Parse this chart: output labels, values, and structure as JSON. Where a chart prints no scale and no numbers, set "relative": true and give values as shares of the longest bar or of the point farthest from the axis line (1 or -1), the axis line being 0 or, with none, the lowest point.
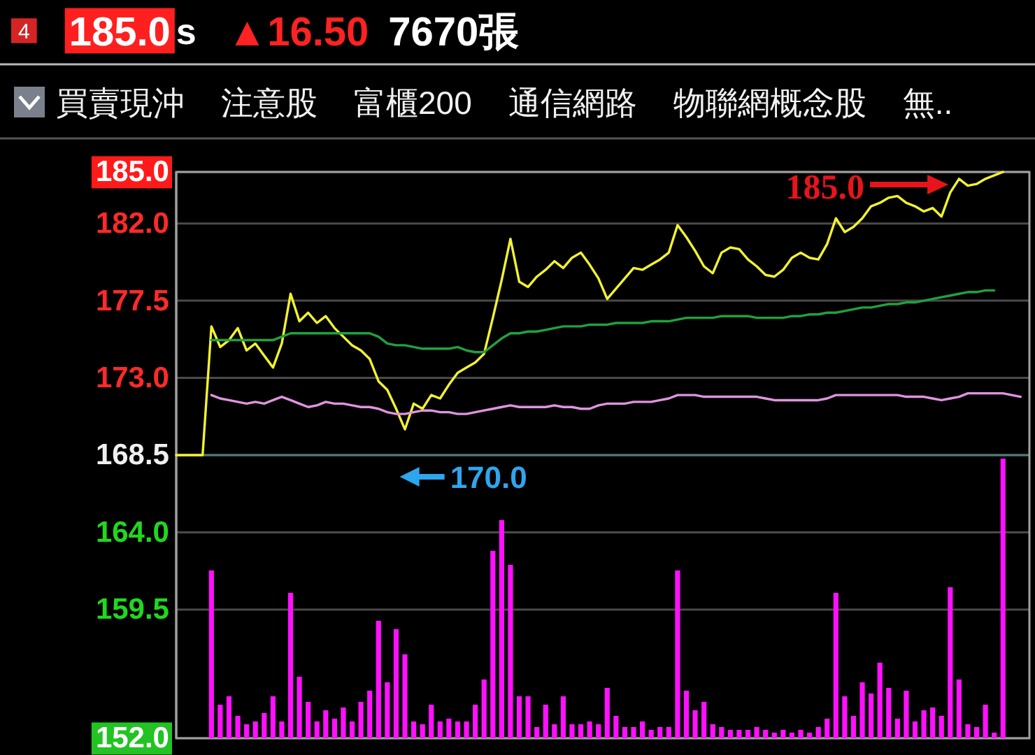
{
  "chart_data": [
    {
      "type": "line",
      "annotations": [
        "4",
        "185.0",
        "s",
        "▲16.50",
        "7670張",
        "買賣現沖",
        "注意股",
        "富櫃200",
        "通信網路",
        "物聯網概念股",
        "無..",
        "185.0",
        "170.0"
      ],
      "categories": [
        null,
        null,
        null,
        null,
        null,
        null,
        null,
        null,
        null,
        null,
        null,
        null,
        null,
        null,
        null,
        null,
        null,
        null,
        null,
        null,
        null,
        null,
        null,
        null,
        null,
        null,
        null,
        null,
        null,
        null,
        null,
        null,
        null,
        null,
        null,
        null,
        null,
        null,
        null,
        null,
        null,
        null,
        null,
        null,
        null,
        null,
        null,
        null,
        null,
        null,
        null,
        null,
        null,
        null,
        null,
        null,
        null,
        null,
        null,
        null,
        null,
        null,
        null,
        null,
        null,
        null,
        null,
        null,
        null,
        null,
        null,
        null,
        null,
        null,
        null,
        null,
        null,
        null,
        null,
        null,
        null,
        null,
        null,
        null,
        null,
        null,
        null,
        null,
        null,
        null,
        null,
        null,
        null,
        null,
        null,
        null,
        null,
        null
      ],
      "series": [
        {
          "color": "#f2f230",
          "values": [
            168.5,
            168.5,
            168.5,
            168.5,
            176.0,
            174.8,
            175.2,
            175.9,
            174.6,
            175.0,
            174.3,
            173.6,
            175.0,
            177.9,
            176.3,
            176.8,
            176.2,
            176.6,
            175.9,
            175.4,
            174.9,
            174.6,
            174.1,
            172.8,
            172.3,
            171.2,
            170.0,
            171.5,
            171.2,
            172.0,
            171.8,
            172.6,
            173.3,
            173.6,
            173.9,
            174.4,
            176.5,
            178.7,
            181.1,
            178.6,
            178.3,
            178.9,
            179.3,
            179.8,
            179.4,
            180.0,
            180.3,
            179.6,
            178.8,
            177.6,
            178.2,
            178.8,
            179.4,
            179.3,
            179.6,
            179.9,
            180.3,
            181.9,
            181.2,
            180.4,
            179.5,
            179.1,
            180.3,
            180.6,
            180.5,
            179.9,
            179.5,
            179.0,
            178.9,
            179.3,
            180.0,
            180.3,
            180.0,
            179.9,
            180.8,
            182.3,
            181.5,
            181.8,
            182.3,
            183.0,
            183.2,
            183.5,
            183.6,
            183.2,
            183.0,
            182.7,
            182.9,
            182.4,
            183.8,
            184.6,
            184.2,
            184.3,
            184.6,
            184.8,
            185.0,
            null,
            null,
            null
          ]
        },
        {
          "color": "#1fa23e",
          "values": [
            null,
            null,
            null,
            null,
            175.2,
            175.2,
            175.2,
            175.2,
            175.2,
            175.2,
            175.2,
            175.2,
            175.4,
            175.6,
            175.6,
            175.6,
            175.6,
            175.6,
            175.6,
            175.6,
            175.6,
            175.6,
            175.6,
            175.4,
            175.0,
            174.9,
            174.9,
            174.8,
            174.7,
            174.7,
            174.7,
            174.7,
            174.8,
            174.6,
            174.5,
            174.5,
            174.9,
            175.3,
            175.6,
            175.6,
            175.7,
            175.7,
            175.8,
            175.9,
            176.0,
            176.0,
            176.0,
            176.1,
            176.1,
            176.1,
            176.2,
            176.2,
            176.2,
            176.2,
            176.3,
            176.3,
            176.3,
            176.4,
            176.5,
            176.5,
            176.5,
            176.5,
            176.6,
            176.6,
            176.6,
            176.6,
            176.5,
            176.5,
            176.5,
            176.5,
            176.6,
            176.6,
            176.7,
            176.7,
            176.8,
            176.8,
            176.9,
            177.0,
            177.1,
            177.1,
            177.2,
            177.3,
            177.3,
            177.4,
            177.4,
            177.5,
            177.6,
            177.7,
            177.8,
            177.9,
            178.0,
            178.0,
            178.1,
            178.1,
            null,
            null,
            null,
            null
          ]
        },
        {
          "color": "#e094e0",
          "values": [
            null,
            null,
            null,
            null,
            172.0,
            171.8,
            171.7,
            171.6,
            171.5,
            171.6,
            171.5,
            171.7,
            171.9,
            171.7,
            171.5,
            171.3,
            171.4,
            171.6,
            171.5,
            171.5,
            171.4,
            171.3,
            171.3,
            171.2,
            171.0,
            170.9,
            170.9,
            171.0,
            171.1,
            171.1,
            171.0,
            171.0,
            170.9,
            170.9,
            171.0,
            171.1,
            171.2,
            171.3,
            171.4,
            171.3,
            171.3,
            171.3,
            171.3,
            171.4,
            171.3,
            171.3,
            171.2,
            171.2,
            171.4,
            171.5,
            171.5,
            171.5,
            171.6,
            171.6,
            171.6,
            171.7,
            171.8,
            172.0,
            172.0,
            172.0,
            171.9,
            171.9,
            171.9,
            171.9,
            171.9,
            171.9,
            171.9,
            171.8,
            171.7,
            171.7,
            171.7,
            171.7,
            171.7,
            171.7,
            171.8,
            172.0,
            172.0,
            172.0,
            172.0,
            172.0,
            172.0,
            172.0,
            172.0,
            171.9,
            171.9,
            171.9,
            171.8,
            171.7,
            171.8,
            171.9,
            172.1,
            172.1,
            172.1,
            172.1,
            172.1,
            172.0,
            171.9,
            null
          ]
        }
      ],
      "ylim": [
        152,
        185
      ],
      "yticks": [
        {
          "value": 152,
          "label": "152.0"
        },
        {
          "value": 159.5,
          "label": "159.5"
        },
        {
          "value": 164,
          "label": "164.0"
        },
        {
          "value": 168.5,
          "label": "168.5"
        },
        {
          "value": 173,
          "label": "173.0"
        },
        {
          "value": 177.5,
          "label": "177.5"
        },
        {
          "value": 182,
          "label": "182.0"
        },
        {
          "value": 185,
          "label": "185.0"
        }
      ],
      "grid": "y",
      "ref_lines": [
        {
          "axis": "y",
          "value": 168.5,
          "color": "#4f7a78"
        }
      ],
      "tick_labels": "y"
    },
    {
      "type": "bar",
      "relative": true,
      "color": "#ff10ff",
      "categories": [
        null,
        null,
        null,
        null,
        null,
        null,
        null,
        null,
        null,
        null,
        null,
        null,
        null,
        null,
        null,
        null,
        null,
        null,
        null,
        null,
        null,
        null,
        null,
        null,
        null,
        null,
        null,
        null,
        null,
        null,
        null,
        null,
        null,
        null,
        null,
        null,
        null,
        null,
        null,
        null,
        null,
        null,
        null,
        null,
        null,
        null,
        null,
        null,
        null,
        null,
        null,
        null,
        null,
        null,
        null,
        null,
        null,
        null,
        null,
        null,
        null,
        null,
        null,
        null,
        null,
        null,
        null,
        null,
        null,
        null,
        null,
        null,
        null,
        null,
        null,
        null,
        null,
        null,
        null,
        null,
        null,
        null,
        null,
        null,
        null,
        null,
        null,
        null,
        null,
        null,
        null,
        null,
        null,
        null,
        null,
        null,
        null,
        null
      ],
      "values": [
        null,
        null,
        null,
        null,
        0.6,
        0.12,
        0.15,
        0.08,
        0.05,
        0.06,
        0.09,
        0.15,
        0.06,
        0.52,
        0.22,
        0.13,
        0.06,
        0.1,
        0.07,
        0.11,
        0.06,
        0.13,
        0.17,
        0.42,
        0.2,
        0.39,
        0.3,
        0.06,
        0.05,
        0.12,
        0.06,
        0.07,
        0.06,
        0.06,
        0.12,
        0.21,
        0.67,
        0.78,
        0.62,
        0.15,
        0.15,
        0.04,
        0.12,
        0.05,
        0.15,
        0.05,
        0.05,
        0.06,
        0.05,
        0.18,
        0.08,
        0.04,
        0.04,
        0.06,
        0.03,
        0.04,
        0.04,
        0.6,
        0.17,
        0.1,
        0.13,
        0.05,
        0.04,
        0.03,
        0.03,
        0.03,
        0.04,
        0.03,
        0.02,
        0.03,
        0.02,
        0.03,
        0.02,
        0.04,
        0.07,
        0.52,
        0.15,
        0.08,
        0.2,
        0.16,
        0.27,
        0.18,
        0.07,
        0.17,
        0.06,
        0.1,
        0.11,
        0.08,
        0.54,
        0.21,
        0.05,
        0.04,
        0.12,
        0.02,
        1.0,
        null,
        null,
        null
      ]
    }
  ]
}
